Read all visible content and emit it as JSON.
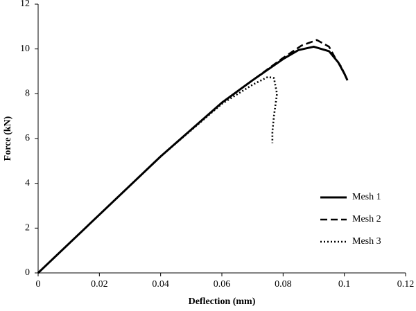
{
  "chart_data": {
    "type": "line",
    "xlabel": "Deflection (mm)",
    "ylabel": "Force (kN)",
    "xlim": [
      0,
      0.12
    ],
    "xticks": [
      0,
      0.02,
      0.04,
      0.06,
      0.08,
      0.1,
      0.12
    ],
    "ylim": [
      0,
      12
    ],
    "yticks": [
      0,
      2,
      4,
      6,
      8,
      10,
      12
    ],
    "grid": false,
    "legend": "lower right",
    "series": [
      {
        "name": "Mesh 1",
        "color": "#000000",
        "style": "solid",
        "x": [
          0,
          0.02,
          0.04,
          0.06,
          0.07,
          0.08,
          0.085,
          0.09,
          0.095,
          0.098,
          0.1,
          0.101
        ],
        "values": [
          0,
          2.6,
          5.2,
          7.6,
          8.6,
          9.55,
          9.95,
          10.1,
          9.9,
          9.4,
          8.9,
          8.6
        ]
      },
      {
        "name": "Mesh 2",
        "color": "#000000",
        "style": "dashed",
        "x": [
          0,
          0.02,
          0.04,
          0.06,
          0.07,
          0.08,
          0.086,
          0.091,
          0.095,
          0.097,
          0.099,
          0.101
        ],
        "values": [
          0,
          2.6,
          5.2,
          7.6,
          8.6,
          9.6,
          10.15,
          10.4,
          10.1,
          9.6,
          9.2,
          8.6
        ]
      },
      {
        "name": "Mesh 3",
        "color": "#000000",
        "style": "dotted",
        "x": [
          0,
          0.02,
          0.04,
          0.06,
          0.07,
          0.075,
          0.077,
          0.078,
          0.077,
          0.0765,
          0.0765
        ],
        "values": [
          0,
          2.6,
          5.2,
          7.55,
          8.4,
          8.75,
          8.7,
          8.0,
          7.0,
          6.3,
          5.8
        ]
      }
    ]
  }
}
